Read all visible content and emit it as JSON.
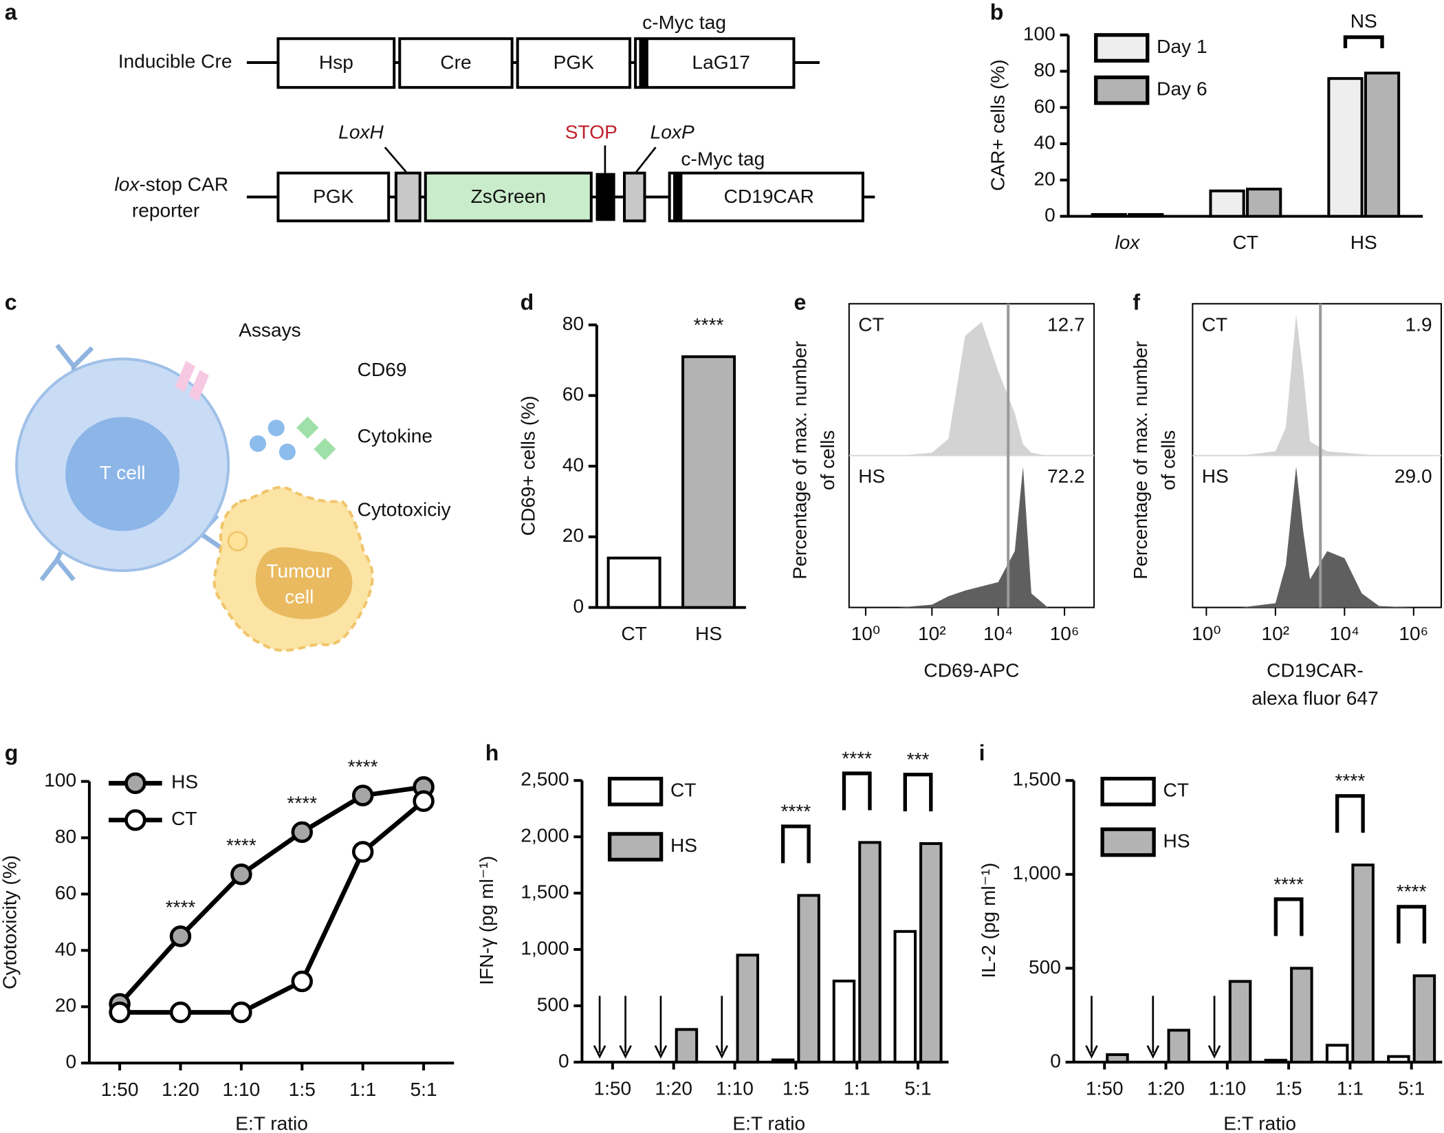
{
  "diagram_a": {
    "label": "a",
    "row1_name": "Inducible Cre",
    "row1_boxes": [
      "Hsp",
      "Cre",
      "PGK",
      "LaG17"
    ],
    "row1_tag": "c-Myc tag",
    "row2_name_italic": "lox",
    "row2_name_rest": "-stop CAR",
    "row2_name_line2": "reporter",
    "row2_boxes": [
      "PGK",
      "ZsGreen",
      "CD19CAR"
    ],
    "loxh": "LoxH",
    "stop": "STOP",
    "loxp": "LoxP",
    "row2_tag": "c-Myc tag"
  },
  "diagram_c": {
    "label": "c",
    "heading": "Assays",
    "assays": [
      "CD69",
      "Cytokine",
      "Cytotoxiciy"
    ],
    "t_cell": "T cell",
    "tumour": [
      "Tumour",
      "cell"
    ]
  },
  "chart_data": [
    {
      "label": "b",
      "type": "bar",
      "ylabel": "CAR+ cells (%)",
      "categories": [
        "lox",
        "CT",
        "HS"
      ],
      "series": [
        {
          "name": "Day 1",
          "color": "#eeeeee",
          "values": [
            1,
            14,
            76
          ]
        },
        {
          "name": "Day 6",
          "color": "#b3b3b3",
          "values": [
            1,
            15,
            79
          ]
        }
      ],
      "ylim": [
        0,
        100
      ],
      "yticks": [
        0,
        20,
        40,
        60,
        80,
        100
      ],
      "significance": [
        null,
        null,
        "NS"
      ],
      "brackets": true
    },
    {
      "label": "d",
      "type": "bar",
      "ylabel": "CD69+ cells (%)",
      "categories": [
        "CT",
        "HS"
      ],
      "values": [
        14,
        71
      ],
      "colors": [
        "#ffffff",
        "#b3b3b3"
      ],
      "ylim": [
        0,
        80
      ],
      "yticks": [
        0,
        20,
        40,
        60,
        80
      ],
      "significance": [
        null,
        "****"
      ],
      "brackets": false
    },
    {
      "label": "e",
      "type": "histogram-overlay",
      "ylabel": [
        "Percentage of max. number",
        "of cells"
      ],
      "xlabel": [
        "CD69-APC"
      ],
      "log_x": true,
      "x": [
        1,
        10,
        100,
        316,
        1000,
        3162,
        10000,
        31623,
        56234,
        100000,
        316228,
        1000000
      ],
      "series": [
        {
          "name": "CT",
          "color": "#d3d3d3",
          "values": [
            0,
            0,
            2,
            12,
            85,
            95,
            60,
            30,
            8,
            2,
            0,
            0
          ]
        },
        {
          "name": "HS",
          "color": "#5f5f5f",
          "values": [
            0,
            0,
            2,
            8,
            12,
            15,
            18,
            40,
            100,
            10,
            0,
            0
          ]
        }
      ],
      "xlim": [
        0.316,
        7800000
      ],
      "ylim": [
        0,
        100
      ],
      "xticks": [
        {
          "value": 1,
          "label": "10⁰"
        },
        {
          "value": 100,
          "label": "10²"
        },
        {
          "value": 10000,
          "label": "10⁴"
        },
        {
          "value": 1000000,
          "label": "10⁶"
        }
      ],
      "gate": 20000,
      "gate_values": [
        12.7,
        72.2
      ]
    },
    {
      "label": "f",
      "type": "histogram-overlay",
      "ylabel": [
        "Percentage of max. number",
        "of cells"
      ],
      "xlabel": [
        "CD19CAR-",
        "alexa fluor 647"
      ],
      "log_x": true,
      "x": [
        1,
        10,
        100,
        200,
        398,
        631,
        1000,
        3162,
        10000,
        31623,
        100000,
        1000000
      ],
      "series": [
        {
          "name": "CT",
          "color": "#d3d3d3",
          "values": [
            0,
            0,
            3,
            20,
            100,
            60,
            10,
            3,
            2,
            1,
            0,
            0
          ]
        },
        {
          "name": "HS",
          "color": "#5f5f5f",
          "values": [
            0,
            0,
            3,
            30,
            100,
            55,
            20,
            40,
            35,
            10,
            1,
            0
          ]
        }
      ],
      "xlim": [
        0.4,
        6300000
      ],
      "ylim": [
        0,
        100
      ],
      "xticks": [
        {
          "value": 1,
          "label": "10⁰"
        },
        {
          "value": 100,
          "label": "10²"
        },
        {
          "value": 10000,
          "label": "10⁴"
        },
        {
          "value": 1000000,
          "label": "10⁶"
        }
      ],
      "gate": 2000,
      "gate_values": [
        1.9,
        29
      ],
      "value_labels": [
        "1.9",
        "29.0"
      ]
    },
    {
      "label": "g",
      "type": "line",
      "ylabel": "Cytotoxicity (%)",
      "xlabel": "E:T ratio",
      "categories": [
        "1:50",
        "1:20",
        "1:10",
        "1:5",
        "1:1",
        "5:1"
      ],
      "series": [
        {
          "name": "HS",
          "color": "#a6a6a6",
          "values": [
            21,
            45,
            67,
            82,
            95,
            98
          ]
        },
        {
          "name": "CT",
          "color": "#ffffff",
          "values": [
            18,
            18,
            18,
            29,
            75,
            93
          ]
        }
      ],
      "ylim": [
        0,
        100
      ],
      "yticks": [
        0,
        20,
        40,
        60,
        80,
        100
      ],
      "significance": [
        null,
        "****",
        "****",
        "****",
        "****",
        null
      ]
    },
    {
      "label": "h",
      "type": "bar",
      "ylabel": "IFN-γ (pg ml⁻¹)",
      "xlabel": "E:T ratio",
      "categories": [
        "1:50",
        "1:20",
        "1:10",
        "1:5",
        "1:1",
        "5:1"
      ],
      "series": [
        {
          "name": "CT",
          "color": "#ffffff",
          "values": [
            null,
            null,
            null,
            20,
            720,
            1160
          ]
        },
        {
          "name": "HS",
          "color": "#b3b3b3",
          "values": [
            null,
            290,
            950,
            1480,
            1950,
            1940
          ]
        }
      ],
      "ylim": [
        0,
        2500
      ],
      "yticks": [
        0,
        500,
        {
          "value": 1000,
          "label": "1,000"
        },
        {
          "value": 1500,
          "label": "1,500"
        },
        {
          "value": 2000,
          "label": "2,000"
        },
        {
          "value": 2500,
          "label": "2,500"
        }
      ],
      "significance": [
        null,
        null,
        null,
        "****",
        "****",
        "***"
      ],
      "brackets": true
    },
    {
      "label": "i",
      "type": "bar",
      "ylabel": "IL-2 (pg ml⁻¹)",
      "xlabel": "E:T ratio",
      "categories": [
        "1:50",
        "1:20",
        "1:10",
        "1:5",
        "1:1",
        "5:1"
      ],
      "series": [
        {
          "name": "CT",
          "color": "#ffffff",
          "values": [
            null,
            null,
            null,
            10,
            90,
            30
          ]
        },
        {
          "name": "HS",
          "color": "#b3b3b3",
          "values": [
            40,
            170,
            430,
            500,
            1050,
            460
          ]
        }
      ],
      "ylim": [
        0,
        1500
      ],
      "yticks": [
        0,
        500,
        {
          "value": 1000,
          "label": "1,000"
        },
        {
          "value": 1500,
          "label": "1,500"
        }
      ],
      "significance": [
        null,
        null,
        null,
        "****",
        "****",
        "****"
      ],
      "brackets": true
    }
  ]
}
